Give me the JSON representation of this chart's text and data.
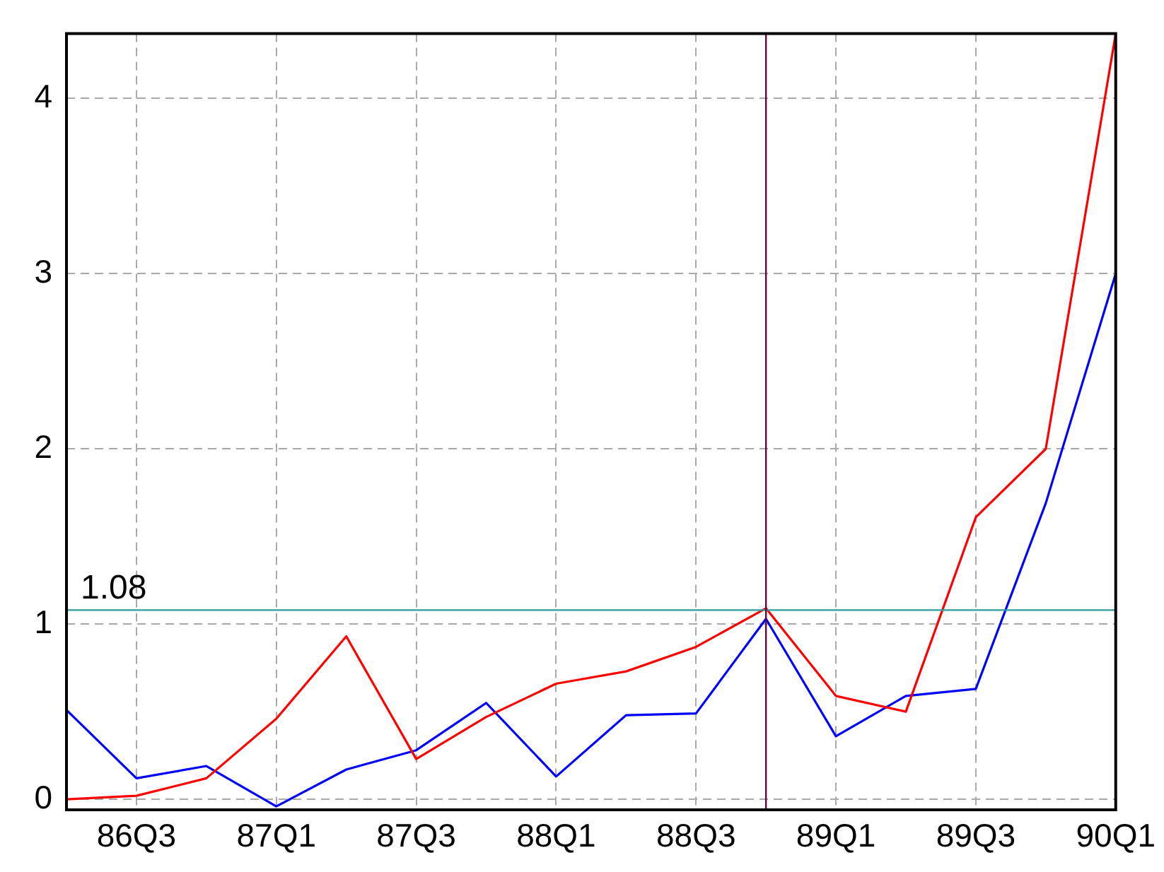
{
  "chart_data": {
    "type": "line",
    "categories": [
      null,
      "86Q3",
      null,
      "87Q1",
      null,
      "87Q3",
      null,
      "88Q1",
      null,
      "88Q3",
      null,
      "89Q1",
      null,
      "89Q3",
      null,
      "90Q1"
    ],
    "series": [
      {
        "color": "#ff0000",
        "values": [
          0.0,
          0.02,
          0.12,
          0.46,
          0.93,
          0.23,
          0.47,
          0.66,
          0.73,
          0.87,
          1.09,
          0.59,
          0.5,
          1.61,
          2.0,
          4.37
        ]
      },
      {
        "color": "#0000ff",
        "values": [
          0.51,
          0.12,
          0.19,
          -0.04,
          0.17,
          0.28,
          0.55,
          0.13,
          0.48,
          0.49,
          1.03,
          0.36,
          0.59,
          0.63,
          1.69,
          3.0
        ]
      }
    ],
    "ylim": [
      -0.06,
      4.37
    ],
    "yticks": [
      0,
      1,
      2,
      3,
      4
    ],
    "grid": true,
    "marker": "none",
    "line_style": "solid",
    "ref_lines": [
      {
        "axis": "y",
        "value": 1.08,
        "label": "1.08",
        "color": "#2a9d9d"
      }
    ]
  }
}
